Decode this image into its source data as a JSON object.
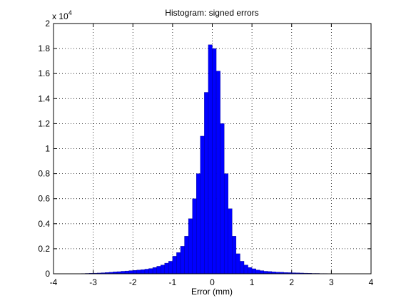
{
  "chart_data": {
    "type": "histogram",
    "title": "Histogram: signed errors",
    "xlabel": "Error (mm)",
    "y_multiplier": "x 10",
    "y_multiplier_exp": "4",
    "bins": [
      -4,
      -3.9,
      -3.8,
      -3.7,
      -3.6,
      -3.5,
      -3.4,
      -3.3,
      -3.2,
      -3.1,
      -3,
      -2.9,
      -2.8,
      -2.7,
      -2.6,
      -2.5,
      -2.4,
      -2.3,
      -2.2,
      -2.1,
      -2,
      -1.9,
      -1.8,
      -1.7,
      -1.6,
      -1.5,
      -1.4,
      -1.3,
      -1.2,
      -1.1,
      -1,
      -0.9,
      -0.8,
      -0.7,
      -0.6,
      -0.5,
      -0.4,
      -0.3,
      -0.2,
      -0.1,
      0,
      0.1,
      0.2,
      0.3,
      0.4,
      0.5,
      0.6,
      0.7,
      0.8,
      0.9,
      1,
      1.1,
      1.2,
      1.3,
      1.4,
      1.5,
      1.6,
      1.7,
      1.8,
      1.9,
      2,
      2.1,
      2.2,
      2.3,
      2.4,
      2.5,
      2.6,
      2.7,
      2.8,
      2.9,
      3,
      3.1,
      3.2,
      3.3,
      3.4,
      3.5,
      3.6,
      3.7,
      3.8,
      3.9,
      4
    ],
    "values": [
      0,
      0,
      0,
      0,
      0,
      0,
      0,
      0.002,
      0.003,
      0.004,
      0.005,
      0.006,
      0.008,
      0.01,
      0.012,
      0.015,
      0.017,
      0.02,
      0.022,
      0.025,
      0.027,
      0.03,
      0.033,
      0.037,
      0.042,
      0.05,
      0.06,
      0.07,
      0.085,
      0.1,
      0.14,
      0.17,
      0.22,
      0.3,
      0.44,
      0.6,
      0.8,
      1.1,
      1.45,
      1.83,
      1.8,
      1.62,
      1.2,
      0.8,
      0.52,
      0.3,
      0.16,
      0.1,
      0.07,
      0.05,
      0.04,
      0.03,
      0.025,
      0.02,
      0.018,
      0.015,
      0.013,
      0.012,
      0.01,
      0.009,
      0.008,
      0.007,
      0.006,
      0.005,
      0.004,
      0.003,
      0.003,
      0.002,
      0.002,
      0.001,
      0.001,
      0.001,
      0,
      0,
      0,
      0,
      0,
      0,
      0,
      0
    ],
    "color": "#0000ff",
    "xlim": [
      -4,
      4
    ],
    "xticks": [
      -4,
      -3,
      -2,
      -1,
      0,
      1,
      2,
      3,
      4
    ],
    "ylim": [
      0,
      2
    ],
    "yticks": [
      0,
      0.2,
      0.4,
      0.6,
      0.8,
      1,
      1.2,
      1.4,
      1.6,
      1.8,
      2
    ],
    "grid": true
  }
}
